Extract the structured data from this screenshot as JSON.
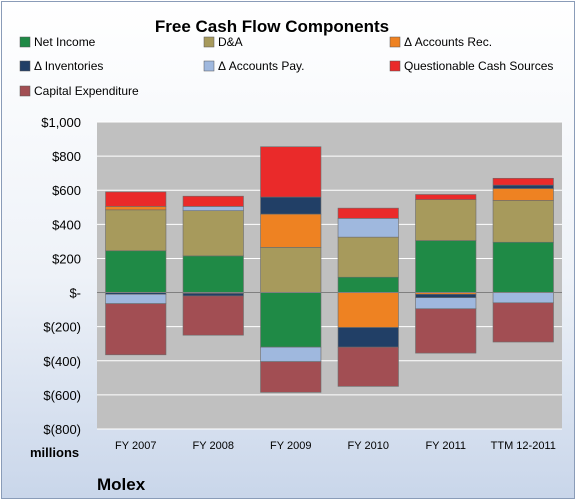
{
  "chart_data": {
    "type": "bar",
    "stacked": true,
    "title": "Free Cash Flow Components",
    "unit_label": "millions",
    "company": "Molex",
    "categories": [
      "FY 2007",
      "FY 2008",
      "FY 2009",
      "FY 2010",
      "FY 2011",
      "TTM 12-2011"
    ],
    "ylim": [
      -800,
      1000
    ],
    "yticks": [
      1000,
      800,
      600,
      400,
      200,
      0,
      -200,
      -400,
      -600,
      -800
    ],
    "ytick_labels": [
      "$1,000",
      "$800",
      "$600",
      "$400",
      "$200",
      "$-",
      "$(200)",
      "$(400)",
      "$(600)",
      "$(800)"
    ],
    "grid": true,
    "legend_position": "top",
    "series": [
      {
        "name": "Net Income",
        "color": "#1f8a46",
        "values": [
          245,
          215,
          -320,
          90,
          305,
          295
        ]
      },
      {
        "name": "D&A",
        "color": "#a79a5c",
        "values": [
          240,
          265,
          265,
          235,
          240,
          245
        ]
      },
      {
        "name": "Δ Accounts Rec.",
        "color": "#ee8222",
        "values": [
          20,
          -5,
          195,
          -205,
          -10,
          70
        ]
      },
      {
        "name": "Δ Inventories",
        "color": "#213f66",
        "values": [
          -10,
          -15,
          100,
          -115,
          -20,
          20
        ]
      },
      {
        "name": "Δ Accounts Pay.",
        "color": "#9fb8de",
        "values": [
          -55,
          25,
          -85,
          110,
          -65,
          -60
        ]
      },
      {
        "name": "Questionable Cash Sources",
        "color": "#ea2a2a",
        "values": [
          85,
          60,
          295,
          60,
          30,
          40
        ]
      },
      {
        "name": "Capital Expenditure",
        "color": "#a24e53",
        "values": [
          -300,
          -230,
          -180,
          -230,
          -260,
          -230
        ]
      }
    ]
  }
}
